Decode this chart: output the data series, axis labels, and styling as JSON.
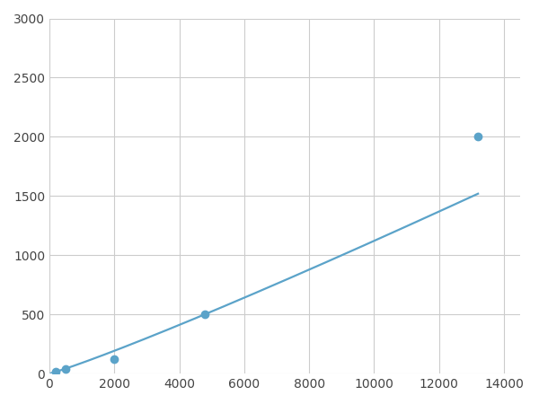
{
  "x_data": [
    200,
    500,
    2000,
    4800,
    13200
  ],
  "y_data": [
    20,
    40,
    120,
    500,
    2000
  ],
  "line_color": "#5ba3c9",
  "marker_color": "#5ba3c9",
  "marker_size": 6,
  "line_width": 1.6,
  "xlim": [
    0,
    14500
  ],
  "ylim": [
    0,
    3000
  ],
  "xticks": [
    0,
    2000,
    4000,
    6000,
    8000,
    10000,
    12000,
    14000
  ],
  "yticks": [
    0,
    500,
    1000,
    1500,
    2000,
    2500,
    3000
  ],
  "grid_color": "#cccccc",
  "background_color": "#ffffff",
  "figsize": [
    6.0,
    4.5
  ],
  "dpi": 100
}
